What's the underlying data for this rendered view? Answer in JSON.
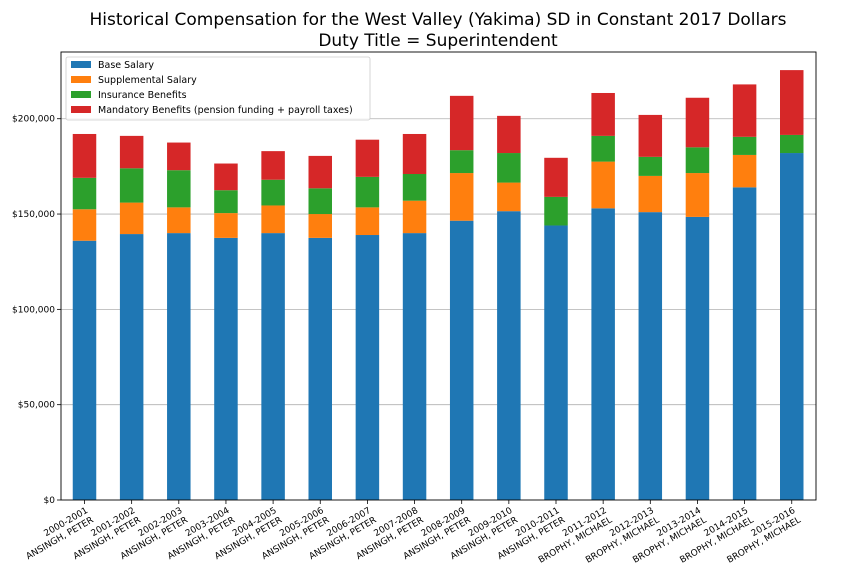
{
  "chart_data": {
    "type": "bar",
    "stacked": true,
    "title": "Historical Compensation for the West Valley (Yakima) SD in Constant 2017 Dollars",
    "subtitle": "Duty Title = Superintendent",
    "xlabel": "",
    "ylabel": "",
    "ylim": [
      0,
      235000
    ],
    "grid": "horizontal",
    "legend_position": "top-left",
    "y_ticks": [
      {
        "value": 0,
        "label": "$0"
      },
      {
        "value": 50000,
        "label": "$50,000"
      },
      {
        "value": 100000,
        "label": "$100,000"
      },
      {
        "value": 150000,
        "label": "$150,000"
      },
      {
        "value": 200000,
        "label": "$200,000"
      }
    ],
    "categories": [
      {
        "year": "2000-2001",
        "name": "ANSINGH, PETER"
      },
      {
        "year": "2001-2002",
        "name": "ANSINGH, PETER"
      },
      {
        "year": "2002-2003",
        "name": "ANSINGH, PETER"
      },
      {
        "year": "2003-2004",
        "name": "ANSINGH, PETER"
      },
      {
        "year": "2004-2005",
        "name": "ANSINGH, PETER"
      },
      {
        "year": "2005-2006",
        "name": "ANSINGH, PETER"
      },
      {
        "year": "2006-2007",
        "name": "ANSINGH, PETER"
      },
      {
        "year": "2007-2008",
        "name": "ANSINGH, PETER"
      },
      {
        "year": "2008-2009",
        "name": "ANSINGH, PETER"
      },
      {
        "year": "2009-2010",
        "name": "ANSINGH, PETER"
      },
      {
        "year": "2010-2011",
        "name": "ANSINGH, PETER"
      },
      {
        "year": "2011-2012",
        "name": "BROPHY, MICHAEL"
      },
      {
        "year": "2012-2013",
        "name": "BROPHY, MICHAEL"
      },
      {
        "year": "2013-2014",
        "name": "BROPHY, MICHAEL"
      },
      {
        "year": "2014-2015",
        "name": "BROPHY, MICHAEL"
      },
      {
        "year": "2015-2016",
        "name": "BROPHY, MICHAEL"
      }
    ],
    "series": [
      {
        "name": "Base Salary",
        "color": "#1f77b4",
        "values": [
          136000,
          139500,
          140000,
          137500,
          140000,
          137500,
          139000,
          140000,
          146500,
          151500,
          144000,
          153000,
          151000,
          148500,
          164000,
          182000
        ]
      },
      {
        "name": "Supplemental Salary",
        "color": "#ff7f0e",
        "values": [
          16500,
          16500,
          13500,
          13000,
          14500,
          12500,
          14500,
          17000,
          25000,
          15000,
          0,
          24500,
          19000,
          23000,
          17000,
          0
        ]
      },
      {
        "name": "Insurance Benefits",
        "color": "#2ca02c",
        "values": [
          16500,
          18000,
          19500,
          12000,
          13500,
          13500,
          16000,
          14000,
          12000,
          15500,
          15000,
          13500,
          10000,
          13500,
          9500,
          9500
        ]
      },
      {
        "name": "Mandatory Benefits (pension funding + payroll taxes)",
        "color": "#d62728",
        "values": [
          23000,
          17000,
          14500,
          14000,
          15000,
          17000,
          19500,
          21000,
          28500,
          19500,
          20500,
          22500,
          22000,
          26000,
          27500,
          34000
        ]
      }
    ]
  }
}
